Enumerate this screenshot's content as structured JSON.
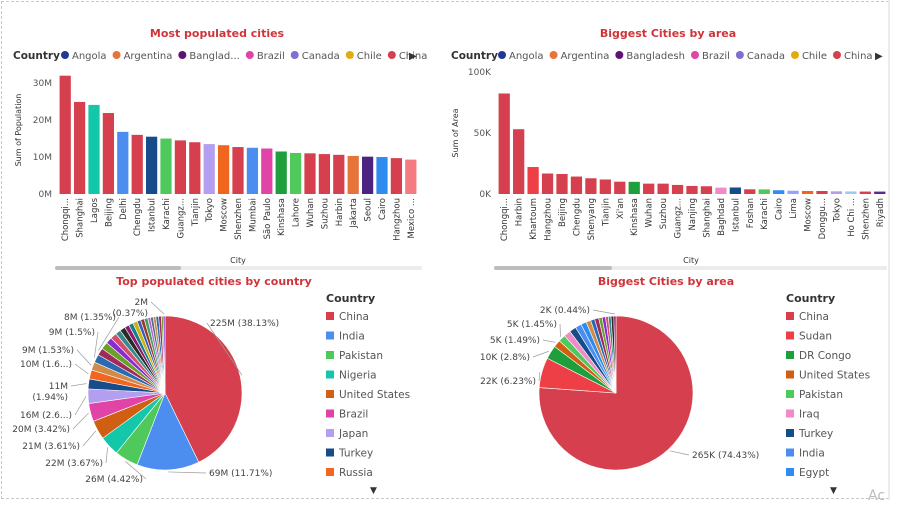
{
  "colors": {
    "China": "#d6404e",
    "India": "#4b8ef0",
    "Pakistan": "#4fc95b",
    "Nigeria": "#14c7a8",
    "United States": "#d05f14",
    "Brazil": "#e044a7",
    "Japan": "#b39ef0",
    "Turkey": "#174c8a",
    "Russia": "#f0661f",
    "Sudan": "#ee3f47",
    "DR Congo": "#1f9e3c",
    "Iraq": "#f08ac8",
    "Egypt": "#2e8cf0",
    "Angola": "#213897",
    "Argentina": "#e6733a",
    "Bangladesh": "#5e1275",
    "Canada": "#7e6fd2",
    "Chile": "#e0ac10",
    "South Korea": "#4a2480",
    "Mexico": "#f47b82",
    "Saudi Arabia": "#5b2b8a",
    "Iran": "#8a6a3a",
    "Vietnam": "#a0c8f0",
    "Thailand": "#30a0a0",
    "Peru": "#9aa0ff",
    "extra": [
      "#2a2a2a",
      "#8b1c6e",
      "#1a7d8a",
      "#c9b21a",
      "#3b5bb0",
      "#9a3b2a",
      "#46a06a",
      "#b06ad0",
      "#5a6e8a",
      "#d08a4a",
      "#2a6ab0",
      "#a02a5a",
      "#6aa02a",
      "#8a2ad0",
      "#d0506e",
      "#3a8a8a"
    ]
  },
  "chart_data": [
    {
      "type": "bar",
      "title": "Most populated cities",
      "xlabel": "City",
      "ylabel": "Sum of Population",
      "ylim": [
        0,
        33000000
      ],
      "yticks": [
        "0M",
        "10M",
        "20M",
        "30M"
      ],
      "ytick_values": [
        0,
        10000000,
        20000000,
        30000000
      ],
      "legend": {
        "title": "Country",
        "items": [
          "Angola",
          "Argentina",
          "Banglad...",
          "Brazil",
          "Canada",
          "Chile",
          "China"
        ]
      },
      "categories": [
        "Chongqi...",
        "Shanghai",
        "Lagos",
        "Beijing",
        "Delhi",
        "Chengdu",
        "Istanbul",
        "Karachi",
        "Guangz...",
        "Tianjin",
        "Tokyo",
        "Moscow",
        "Shenzhen",
        "Mumbai",
        "São Paulo",
        "Kinshasa",
        "Lahore",
        "Wuhan",
        "Suzhou",
        "Harbin",
        "Jakarta",
        "Seoul",
        "Cairo",
        "Hangzhou",
        "Mexico ..."
      ],
      "countries": [
        "China",
        "China",
        "Nigeria",
        "China",
        "India",
        "China",
        "Turkey",
        "Pakistan",
        "China",
        "China",
        "Japan",
        "Russia",
        "China",
        "India",
        "Brazil",
        "DR Congo",
        "Pakistan",
        "China",
        "China",
        "China",
        "Argentina",
        "South Korea",
        "Egypt",
        "China",
        "Mexico"
      ],
      "values": [
        32000000,
        24900000,
        24100000,
        21900000,
        16800000,
        16000000,
        15500000,
        15000000,
        14500000,
        14000000,
        13500000,
        13200000,
        12700000,
        12500000,
        12300000,
        11500000,
        11100000,
        11000000,
        10800000,
        10600000,
        10300000,
        10100000,
        10000000,
        9700000,
        9300000
      ]
    },
    {
      "type": "bar",
      "title": "Biggest Cities by area",
      "xlabel": "City",
      "ylabel": "Sum of Area",
      "ylim": [
        0,
        100000
      ],
      "yticks": [
        "0K",
        "50K",
        "100K"
      ],
      "ytick_values": [
        0,
        50000,
        100000
      ],
      "legend": {
        "title": "Country",
        "items": [
          "Angola",
          "Argentina",
          "Bangladesh",
          "Brazil",
          "Canada",
          "Chile",
          "China"
        ]
      },
      "categories": [
        "Chongqi...",
        "Harbin",
        "Khartoum",
        "Hangzhou",
        "Beijing",
        "Chengdu",
        "Shenyang",
        "Tianjin",
        "Xi'an",
        "Kinshasa",
        "Wuhan",
        "Suzhou",
        "Guangz...",
        "Nanjing",
        "Shanghai",
        "Baghdad",
        "Istanbul",
        "Foshan",
        "Karachi",
        "Cairo",
        "Lima",
        "Moscow",
        "Donggu...",
        "Tokyo",
        "Ho Chi ...",
        "Shenzhen",
        "Riyadh"
      ],
      "countries": [
        "China",
        "China",
        "Sudan",
        "China",
        "China",
        "China",
        "China",
        "China",
        "China",
        "DR Congo",
        "China",
        "China",
        "China",
        "China",
        "China",
        "Iraq",
        "Turkey",
        "China",
        "Pakistan",
        "Egypt",
        "Peru",
        "Russia",
        "China",
        "Japan",
        "Vietnam",
        "China",
        "Saudi Arabia"
      ],
      "values": [
        82400,
        53100,
        22100,
        16800,
        16400,
        14300,
        12900,
        11900,
        10100,
        9965,
        8494,
        8488,
        7434,
        6587,
        6341,
        5200,
        5343,
        3848,
        3780,
        3085,
        2672,
        2511,
        2465,
        2191,
        2095,
        1998,
        1973
      ]
    },
    {
      "type": "pie",
      "title": "Top populated cities by country",
      "legend": {
        "title": "Country",
        "items": [
          "China",
          "India",
          "Pakistan",
          "Nigeria",
          "United States",
          "Brazil",
          "Japan",
          "Turkey",
          "Russia"
        ]
      },
      "slices": [
        {
          "country": "China",
          "value": 225,
          "label": "225M (38.13%)"
        },
        {
          "country": "India",
          "value": 69,
          "label": "69M (11.71%)"
        },
        {
          "country": "Pakistan",
          "value": 26,
          "label": "26M (4.42%)"
        },
        {
          "country": "Nigeria",
          "value": 22,
          "label": "22M (3.67%)"
        },
        {
          "country": "United States",
          "value": 21,
          "label": "21M (3.61%)"
        },
        {
          "country": "Brazil",
          "value": 20,
          "label": "20M (3.42%)"
        },
        {
          "country": "Japan",
          "value": 16,
          "label": "16M (2.6...)"
        },
        {
          "country": "Turkey",
          "value": 11,
          "label": "11M (1.94%)"
        },
        {
          "country": "Russia",
          "value": 10,
          "label": "10M (1.6...)"
        },
        {
          "country": "",
          "value": 9,
          "label": "9M (1.53%)"
        },
        {
          "country": "",
          "value": 9,
          "label": "9M (1.5%)"
        },
        {
          "country": "",
          "value": 8,
          "label": "8M (1.35%)"
        },
        {
          "country": "",
          "value": 8,
          "label": ""
        },
        {
          "country": "",
          "value": 7,
          "label": ""
        },
        {
          "country": "",
          "value": 7,
          "label": ""
        },
        {
          "country": "",
          "value": 6,
          "label": ""
        },
        {
          "country": "",
          "value": 6,
          "label": ""
        },
        {
          "country": "",
          "value": 5,
          "label": ""
        },
        {
          "country": "",
          "value": 5,
          "label": ""
        },
        {
          "country": "",
          "value": 5,
          "label": ""
        },
        {
          "country": "",
          "value": 4,
          "label": ""
        },
        {
          "country": "",
          "value": 4,
          "label": ""
        },
        {
          "country": "",
          "value": 4,
          "label": ""
        },
        {
          "country": "",
          "value": 3,
          "label": ""
        },
        {
          "country": "",
          "value": 3,
          "label": ""
        },
        {
          "country": "",
          "value": 3,
          "label": ""
        },
        {
          "country": "",
          "value": 3,
          "label": ""
        },
        {
          "country": "",
          "value": 3,
          "label": ""
        },
        {
          "country": "",
          "value": 2,
          "label": ""
        },
        {
          "country": "",
          "value": 2,
          "label": "2M (0.37%)"
        }
      ]
    },
    {
      "type": "pie",
      "title": "Biggest Cities by area",
      "legend": {
        "title": "Country",
        "items": [
          "China",
          "Sudan",
          "DR Congo",
          "United States",
          "Pakistan",
          "Iraq",
          "Turkey",
          "India",
          "Egypt"
        ]
      },
      "slices": [
        {
          "country": "China",
          "value": 265,
          "label": "265K (74.43%)"
        },
        {
          "country": "Sudan",
          "value": 22,
          "label": "22K (6.23%)"
        },
        {
          "country": "DR Congo",
          "value": 10,
          "label": "10K (2.8%)"
        },
        {
          "country": "United States",
          "value": 5.3,
          "label": "5K (1.49%)"
        },
        {
          "country": "Pakistan",
          "value": 5.2,
          "label": "5K (1.45%)"
        },
        {
          "country": "Iraq",
          "value": 5,
          "label": ""
        },
        {
          "country": "Turkey",
          "value": 5,
          "label": ""
        },
        {
          "country": "India",
          "value": 4.5,
          "label": ""
        },
        {
          "country": "Egypt",
          "value": 4,
          "label": ""
        },
        {
          "country": "",
          "value": 3.5,
          "label": ""
        },
        {
          "country": "",
          "value": 3,
          "label": ""
        },
        {
          "country": "",
          "value": 3,
          "label": ""
        },
        {
          "country": "",
          "value": 2.5,
          "label": ""
        },
        {
          "country": "",
          "value": 2.5,
          "label": ""
        },
        {
          "country": "",
          "value": 2,
          "label": ""
        },
        {
          "country": "",
          "value": 2,
          "label": ""
        },
        {
          "country": "",
          "value": 2,
          "label": ""
        },
        {
          "country": "",
          "value": 1.6,
          "label": "2K (0.44%)"
        }
      ]
    }
  ]
}
